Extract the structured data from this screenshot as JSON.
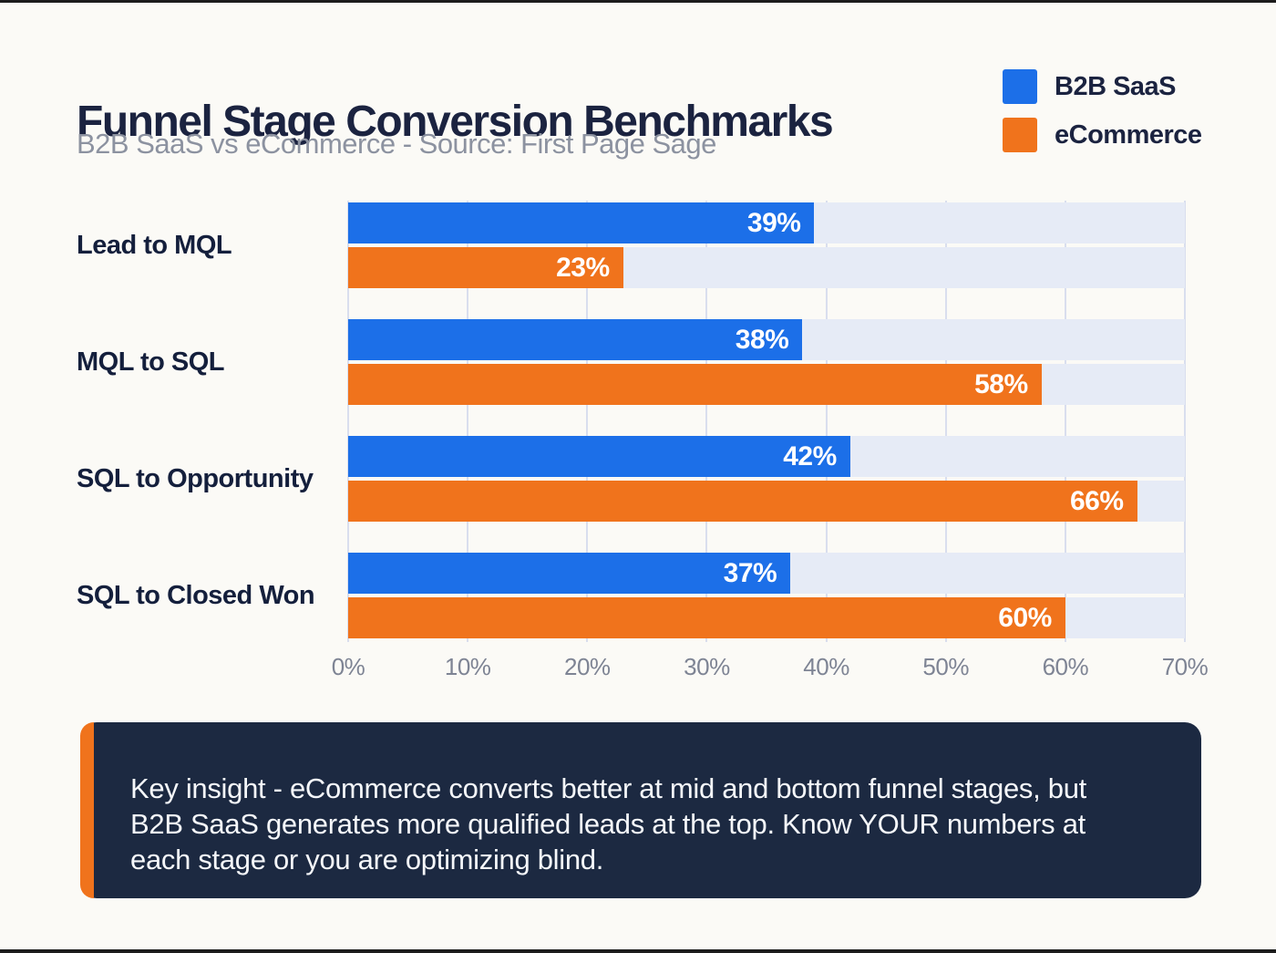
{
  "title": "Funnel Stage Conversion Benchmarks",
  "subtitle": "B2B SaaS vs eCommerce - Source: First Page Sage",
  "colors": {
    "b2b_saas": "#1c6fe8",
    "ecommerce": "#f0731c",
    "track": "#e6ebf6",
    "gridline": "#d9deee",
    "insight_background": "#1c2941",
    "insight_stripe": "#f0731c",
    "title_text": "#1b2340",
    "page_background": "#fbfaf6"
  },
  "legend": {
    "items": [
      {
        "label": "B2B SaaS",
        "color": "#1c6fe8"
      },
      {
        "label": "eCommerce",
        "color": "#f0731c"
      }
    ]
  },
  "chart_data": {
    "type": "bar",
    "orientation": "horizontal",
    "title": "Funnel Stage Conversion Benchmarks",
    "subtitle": "B2B SaaS vs eCommerce - Source: First Page Sage",
    "categories": [
      "Lead to MQL",
      "MQL to SQL",
      "SQL to Opportunity",
      "SQL to Closed Won"
    ],
    "series": [
      {
        "name": "B2B SaaS",
        "color": "#1c6fe8",
        "values": [
          39,
          38,
          42,
          37
        ],
        "labels": [
          "39%",
          "38%",
          "42%",
          "37%"
        ]
      },
      {
        "name": "eCommerce",
        "color": "#f0731c",
        "values": [
          23,
          58,
          66,
          60
        ],
        "labels": [
          "23%",
          "58%",
          "66%",
          "60%"
        ]
      }
    ],
    "xlim": [
      0,
      70
    ],
    "x_ticks": [
      "0%",
      "10%",
      "20%",
      "30%",
      "40%",
      "50%",
      "60%",
      "70%"
    ],
    "grid": true,
    "legend_position": "top-right",
    "value_label_position": "inside-end"
  },
  "insight": {
    "text": "Key insight - eCommerce converts better at mid and bottom funnel stages, but B2B SaaS generates more qualified leads at the top. Know YOUR numbers at each stage or you are optimizing blind."
  }
}
